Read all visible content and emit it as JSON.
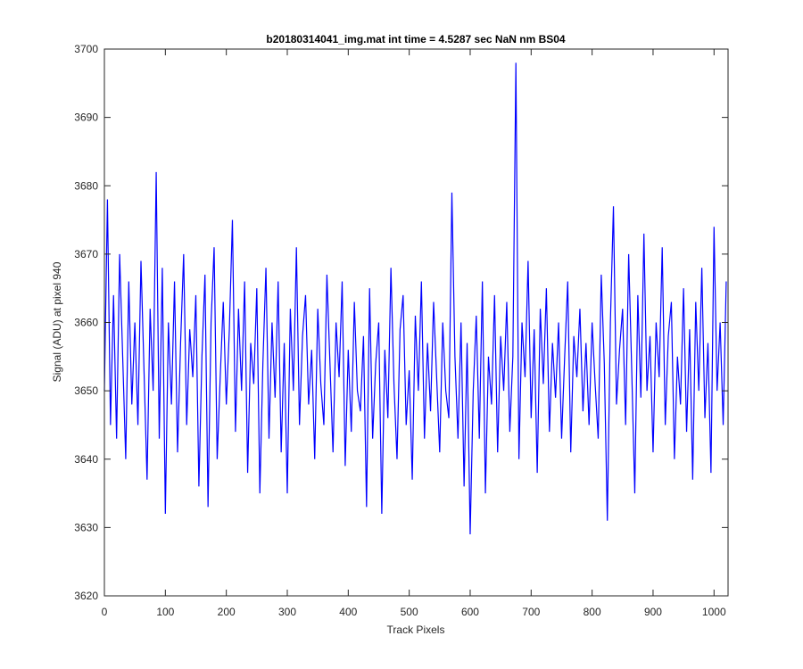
{
  "chart_data": {
    "type": "line",
    "title": "b20180314041_img.mat int time = 4.5287 sec  NaN nm BS04",
    "x_label": "Track Pixels",
    "y_label": "Signal (ADU) at pixel 940",
    "xlim": [
      0,
      1023
    ],
    "ylim": [
      3620,
      3700
    ],
    "xticks": [
      0,
      100,
      200,
      300,
      400,
      500,
      600,
      700,
      800,
      900,
      1000
    ],
    "yticks": [
      3620,
      3630,
      3640,
      3650,
      3660,
      3670,
      3680,
      3690,
      3700
    ],
    "x": [
      0,
      5,
      10,
      15,
      20,
      25,
      30,
      35,
      40,
      45,
      50,
      55,
      60,
      65,
      70,
      75,
      80,
      85,
      90,
      95,
      100,
      105,
      110,
      115,
      120,
      125,
      130,
      135,
      140,
      145,
      150,
      155,
      160,
      165,
      170,
      175,
      180,
      185,
      190,
      195,
      200,
      205,
      210,
      215,
      220,
      225,
      230,
      235,
      240,
      245,
      250,
      255,
      260,
      265,
      270,
      275,
      280,
      285,
      290,
      295,
      300,
      305,
      310,
      315,
      320,
      325,
      330,
      335,
      340,
      345,
      350,
      355,
      360,
      365,
      370,
      375,
      380,
      385,
      390,
      395,
      400,
      405,
      410,
      415,
      420,
      425,
      430,
      435,
      440,
      445,
      450,
      455,
      460,
      465,
      470,
      475,
      480,
      485,
      490,
      495,
      500,
      505,
      510,
      515,
      520,
      525,
      530,
      535,
      540,
      545,
      550,
      555,
      560,
      565,
      570,
      575,
      580,
      585,
      590,
      595,
      600,
      605,
      610,
      615,
      620,
      625,
      630,
      635,
      640,
      645,
      650,
      655,
      660,
      665,
      670,
      675,
      680,
      685,
      690,
      695,
      700,
      705,
      710,
      715,
      720,
      725,
      730,
      735,
      740,
      745,
      750,
      755,
      760,
      765,
      770,
      775,
      780,
      785,
      790,
      795,
      800,
      805,
      810,
      815,
      820,
      825,
      830,
      835,
      840,
      845,
      850,
      855,
      860,
      865,
      870,
      875,
      880,
      885,
      890,
      895,
      900,
      905,
      910,
      915,
      920,
      925,
      930,
      935,
      940,
      945,
      950,
      955,
      960,
      965,
      970,
      975,
      980,
      985,
      990,
      995,
      1000,
      1005,
      1010,
      1015,
      1020
    ],
    "series": [
      {
        "color": "#0000ff",
        "values": [
          3650,
          3678,
          3645,
          3664,
          3643,
          3670,
          3655,
          3640,
          3666,
          3648,
          3660,
          3645,
          3669,
          3653,
          3637,
          3662,
          3650,
          3682,
          3643,
          3668,
          3632,
          3660,
          3648,
          3666,
          3641,
          3657,
          3670,
          3645,
          3659,
          3652,
          3664,
          3636,
          3655,
          3667,
          3633,
          3660,
          3671,
          3640,
          3652,
          3663,
          3648,
          3659,
          3675,
          3644,
          3662,
          3650,
          3666,
          3638,
          3657,
          3651,
          3665,
          3635,
          3654,
          3668,
          3643,
          3660,
          3649,
          3666,
          3641,
          3657,
          3635,
          3662,
          3650,
          3671,
          3645,
          3658,
          3664,
          3648,
          3656,
          3640,
          3662,
          3651,
          3645,
          3667,
          3654,
          3641,
          3660,
          3652,
          3666,
          3639,
          3656,
          3644,
          3663,
          3650,
          3647,
          3658,
          3633,
          3665,
          3643,
          3654,
          3660,
          3632,
          3656,
          3646,
          3668,
          3651,
          3640,
          3659,
          3664,
          3645,
          3653,
          3637,
          3661,
          3650,
          3666,
          3643,
          3657,
          3647,
          3663,
          3652,
          3641,
          3660,
          3650,
          3646,
          3679,
          3655,
          3643,
          3660,
          3636,
          3657,
          3629,
          3650,
          3661,
          3643,
          3666,
          3635,
          3655,
          3648,
          3664,
          3641,
          3658,
          3650,
          3663,
          3644,
          3655,
          3698,
          3640,
          3660,
          3652,
          3669,
          3646,
          3659,
          3638,
          3662,
          3651,
          3665,
          3644,
          3657,
          3649,
          3660,
          3643,
          3655,
          3666,
          3641,
          3658,
          3652,
          3662,
          3647,
          3657,
          3645,
          3660,
          3651,
          3643,
          3667,
          3654,
          3631,
          3660,
          3677,
          3648,
          3656,
          3662,
          3645,
          3670,
          3653,
          3635,
          3664,
          3649,
          3673,
          3650,
          3658,
          3641,
          3660,
          3652,
          3671,
          3645,
          3658,
          3663,
          3640,
          3655,
          3648,
          3665,
          3644,
          3659,
          3637,
          3663,
          3650,
          3668,
          3646,
          3657,
          3638,
          3674,
          3650,
          3660,
          3645,
          3666
        ]
      }
    ]
  }
}
